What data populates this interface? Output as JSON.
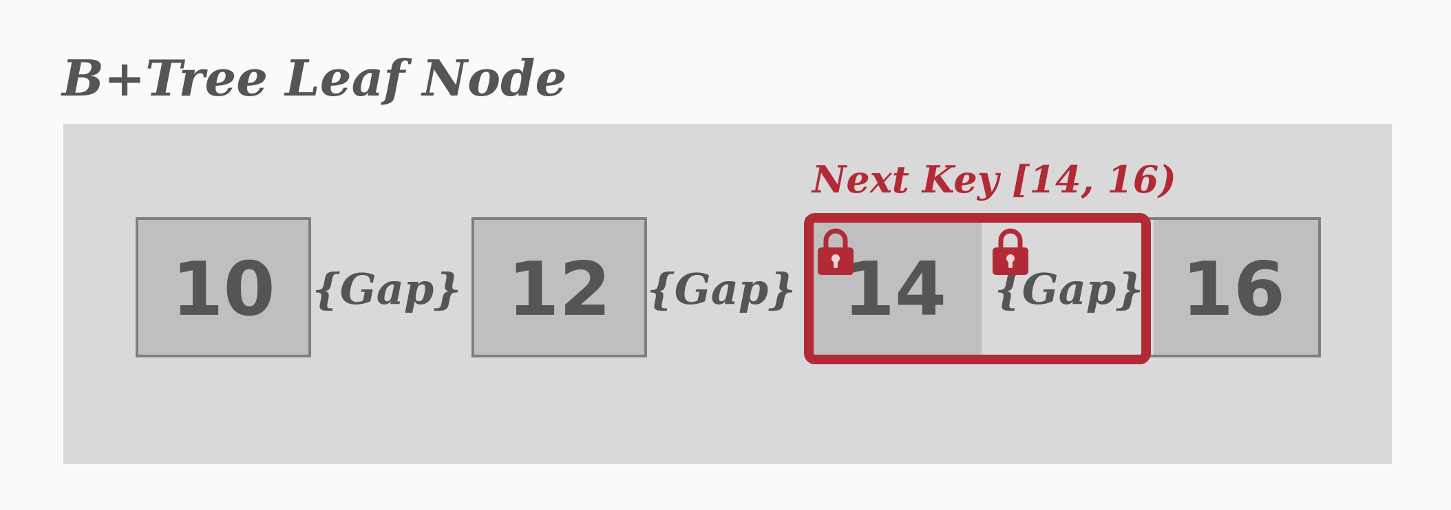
{
  "title": "B+Tree Leaf Node",
  "leaf": {
    "keys": [
      "10",
      "12",
      "14",
      "16"
    ],
    "gaps": [
      "{Gap}",
      "{Gap}",
      "{Gap}"
    ]
  },
  "lock": {
    "label": "Next Key [14, 16)",
    "color": "#b22a35",
    "icons": [
      "lock-icon",
      "lock-icon"
    ]
  },
  "colors": {
    "panel": "#d9d9d9",
    "key_fill": "#bfbfbf",
    "key_border": "#7f7f7f",
    "text": "#555555"
  }
}
